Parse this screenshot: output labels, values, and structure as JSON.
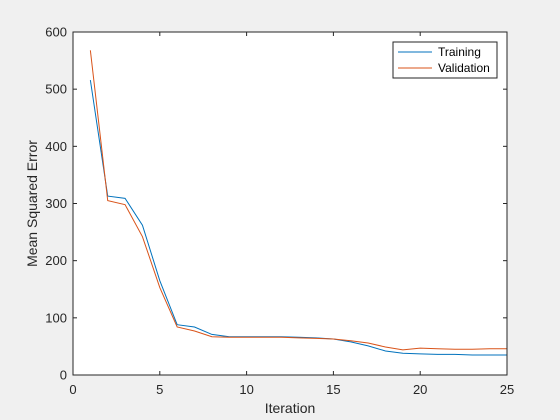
{
  "chart_data": {
    "type": "line",
    "title": "",
    "xlabel": "Iteration",
    "ylabel": "Mean Squared Error",
    "xlim": [
      0,
      25
    ],
    "ylim": [
      0,
      600
    ],
    "xticks": [
      0,
      5,
      10,
      15,
      20,
      25
    ],
    "yticks": [
      0,
      100,
      200,
      300,
      400,
      500,
      600
    ],
    "grid": false,
    "legend_position": "top-right",
    "x": [
      1,
      2,
      3,
      4,
      5,
      6,
      7,
      8,
      9,
      10,
      11,
      12,
      13,
      14,
      15,
      16,
      17,
      18,
      19,
      20,
      21,
      22,
      23,
      24,
      25
    ],
    "series": [
      {
        "name": "Training",
        "color": "#0072BD",
        "values": [
          516,
          313,
          309,
          262,
          165,
          88,
          84,
          71,
          67,
          67,
          67,
          67,
          66,
          65,
          63,
          58,
          51,
          42,
          38,
          37,
          36,
          36,
          35,
          35,
          35
        ]
      },
      {
        "name": "Validation",
        "color": "#D95319",
        "values": [
          568,
          305,
          298,
          242,
          153,
          84,
          77,
          67,
          66,
          66,
          66,
          66,
          65,
          64,
          63,
          60,
          56,
          49,
          44,
          47,
          46,
          45,
          45,
          46,
          46
        ]
      }
    ]
  }
}
